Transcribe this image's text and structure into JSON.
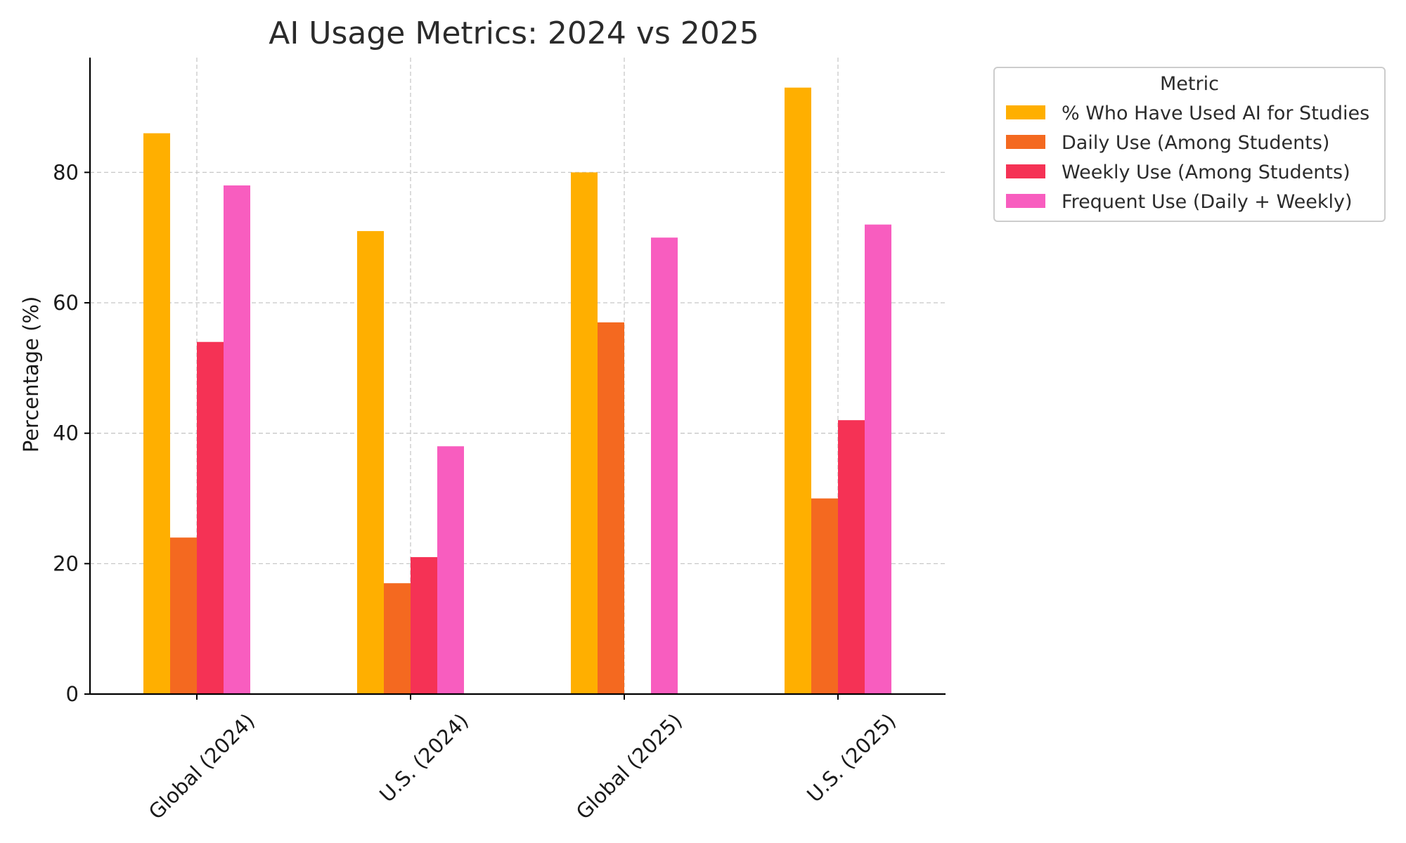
{
  "chart_data": {
    "type": "bar",
    "title": "AI Usage Metrics: 2024 vs 2025",
    "xlabel": "",
    "ylabel": "Percentage (%)",
    "ylim": [
      0,
      97.6
    ],
    "yticks": [
      0,
      20,
      40,
      60,
      80
    ],
    "categories": [
      "Global (2024)",
      "U.S. (2024)",
      "Global (2025)",
      "U.S. (2025)"
    ],
    "grid": true,
    "legend": {
      "title": "Metric",
      "placement": "outside-top-right"
    },
    "series": [
      {
        "name": "% Who Have Used AI for Studies",
        "color": "#FFAF00",
        "values": [
          86,
          71,
          80,
          93
        ]
      },
      {
        "name": "Daily Use (Among Students)",
        "color": "#F46920",
        "values": [
          24,
          17,
          57,
          30
        ]
      },
      {
        "name": "Weekly Use (Among Students)",
        "color": "#F53255",
        "values": [
          54,
          21,
          null,
          42
        ]
      },
      {
        "name": "Frequent Use (Daily + Weekly)",
        "color": "#F85DBF",
        "values": [
          78,
          38,
          70,
          72
        ]
      }
    ]
  }
}
